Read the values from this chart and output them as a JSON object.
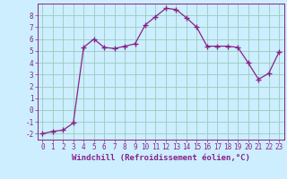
{
  "x": [
    0,
    1,
    2,
    3,
    4,
    5,
    6,
    7,
    8,
    9,
    10,
    11,
    12,
    13,
    14,
    15,
    16,
    17,
    18,
    19,
    20,
    21,
    22,
    23
  ],
  "y": [
    -2.0,
    -1.8,
    -1.7,
    -1.1,
    5.3,
    6.0,
    5.3,
    5.2,
    5.4,
    5.6,
    7.2,
    7.9,
    8.6,
    8.5,
    7.8,
    7.0,
    5.4,
    5.4,
    5.4,
    5.3,
    4.0,
    2.6,
    3.1,
    4.9
  ],
  "line_color": "#882288",
  "marker": "+",
  "marker_size": 4,
  "marker_linewidth": 1.0,
  "bg_color": "#cceeff",
  "grid_color": "#99ccbb",
  "xlabel": "Windchill (Refroidissement éolien,°C)",
  "xlabel_fontsize": 6.5,
  "tick_fontsize": 5.5,
  "xlim": [
    -0.5,
    23.5
  ],
  "ylim": [
    -2.5,
    9.0
  ],
  "yticks": [
    -2,
    -1,
    0,
    1,
    2,
    3,
    4,
    5,
    6,
    7,
    8
  ],
  "xticks": [
    0,
    1,
    2,
    3,
    4,
    5,
    6,
    7,
    8,
    9,
    10,
    11,
    12,
    13,
    14,
    15,
    16,
    17,
    18,
    19,
    20,
    21,
    22,
    23
  ]
}
